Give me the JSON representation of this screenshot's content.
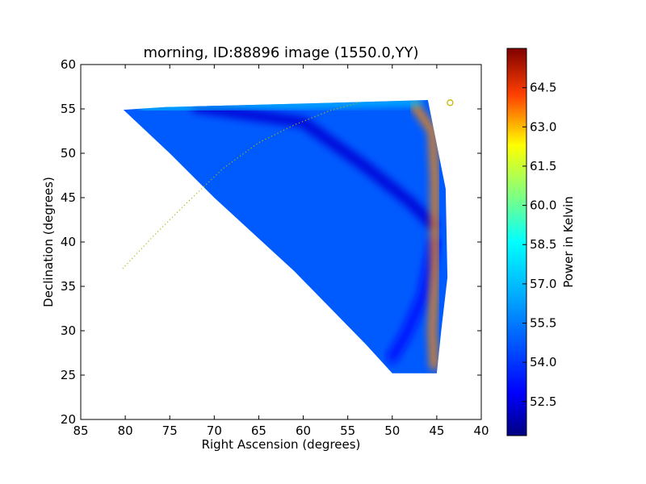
{
  "chart_data": {
    "type": "heatmap",
    "title": "morning, ID:88896 image (1550.0,YY)",
    "xlabel": "Right Ascension (degrees)",
    "ylabel": "Declination (degrees)",
    "xlim": [
      85,
      40
    ],
    "ylim": [
      20,
      60
    ],
    "x_ticks": [
      "85",
      "80",
      "75",
      "70",
      "65",
      "60",
      "55",
      "50",
      "45",
      "40"
    ],
    "y_ticks": [
      "20",
      "25",
      "30",
      "35",
      "40",
      "45",
      "50",
      "55",
      "60"
    ],
    "x_axis_inverted": true,
    "grid": false,
    "colormap": "jet",
    "colorbar": {
      "label": "Power in Kelvin",
      "range": [
        51.2,
        66.0
      ],
      "ticks": [
        "52.5",
        "54.0",
        "55.5",
        "57.0",
        "58.5",
        "60.0",
        "61.5",
        "63.0",
        "64.5"
      ]
    },
    "coverage_region": {
      "polygon_ra_dec": [
        [
          80.2,
          54.9
        ],
        [
          75.5,
          55.2
        ],
        [
          60.0,
          55.6
        ],
        [
          53.0,
          55.8
        ],
        [
          46.0,
          56.0
        ],
        [
          45.2,
          52.0
        ],
        [
          44.0,
          46.0
        ],
        [
          43.8,
          36.0
        ],
        [
          44.5,
          30.0
        ],
        [
          45.0,
          25.2
        ],
        [
          50.0,
          25.2
        ],
        [
          53.0,
          28.5
        ],
        [
          61.0,
          36.7
        ],
        [
          70.0,
          45.0
        ],
        [
          75.0,
          50.0
        ]
      ],
      "background_level_K": 54.8
    },
    "features": [
      {
        "type": "cold_band",
        "path_ra_dec": [
          [
            72.0,
            55.2
          ],
          [
            60.0,
            53.5
          ],
          [
            53.0,
            48.5
          ],
          [
            48.0,
            44.5
          ],
          [
            45.5,
            42.0
          ]
        ],
        "level_K": 52.3
      },
      {
        "type": "cold_band",
        "path_ra_dec": [
          [
            45.3,
            40.0
          ],
          [
            46.5,
            34.0
          ],
          [
            48.5,
            29.5
          ],
          [
            50.0,
            27.0
          ]
        ],
        "level_K": 53.2
      },
      {
        "type": "hot_edge",
        "path_ra_dec": [
          [
            47.5,
            55.4
          ],
          [
            45.5,
            52.5
          ],
          [
            45.2,
            47.0
          ],
          [
            45.2,
            42.5
          ],
          [
            45.2,
            37.0
          ],
          [
            45.5,
            30.0
          ],
          [
            45.3,
            26.0
          ]
        ],
        "level_K": 63.5
      },
      {
        "type": "warm_top_edge",
        "path_ra_dec": [
          [
            78.0,
            55.0
          ],
          [
            65.0,
            55.4
          ],
          [
            55.0,
            55.6
          ],
          [
            47.0,
            55.8
          ]
        ],
        "level_K": 57.5
      }
    ],
    "overlays": [
      {
        "type": "dotted_curve",
        "color": "#b5b500",
        "points_ra_dec": [
          [
            80.3,
            37.0
          ],
          [
            77.0,
            40.5
          ],
          [
            73.0,
            44.5
          ],
          [
            69.0,
            48.3
          ],
          [
            65.0,
            51.2
          ],
          [
            61.0,
            53.2
          ],
          [
            57.0,
            54.8
          ],
          [
            53.8,
            55.7
          ]
        ]
      },
      {
        "type": "circle_marker",
        "color": "#c8b400",
        "ra": 43.5,
        "dec": 55.7
      }
    ]
  }
}
